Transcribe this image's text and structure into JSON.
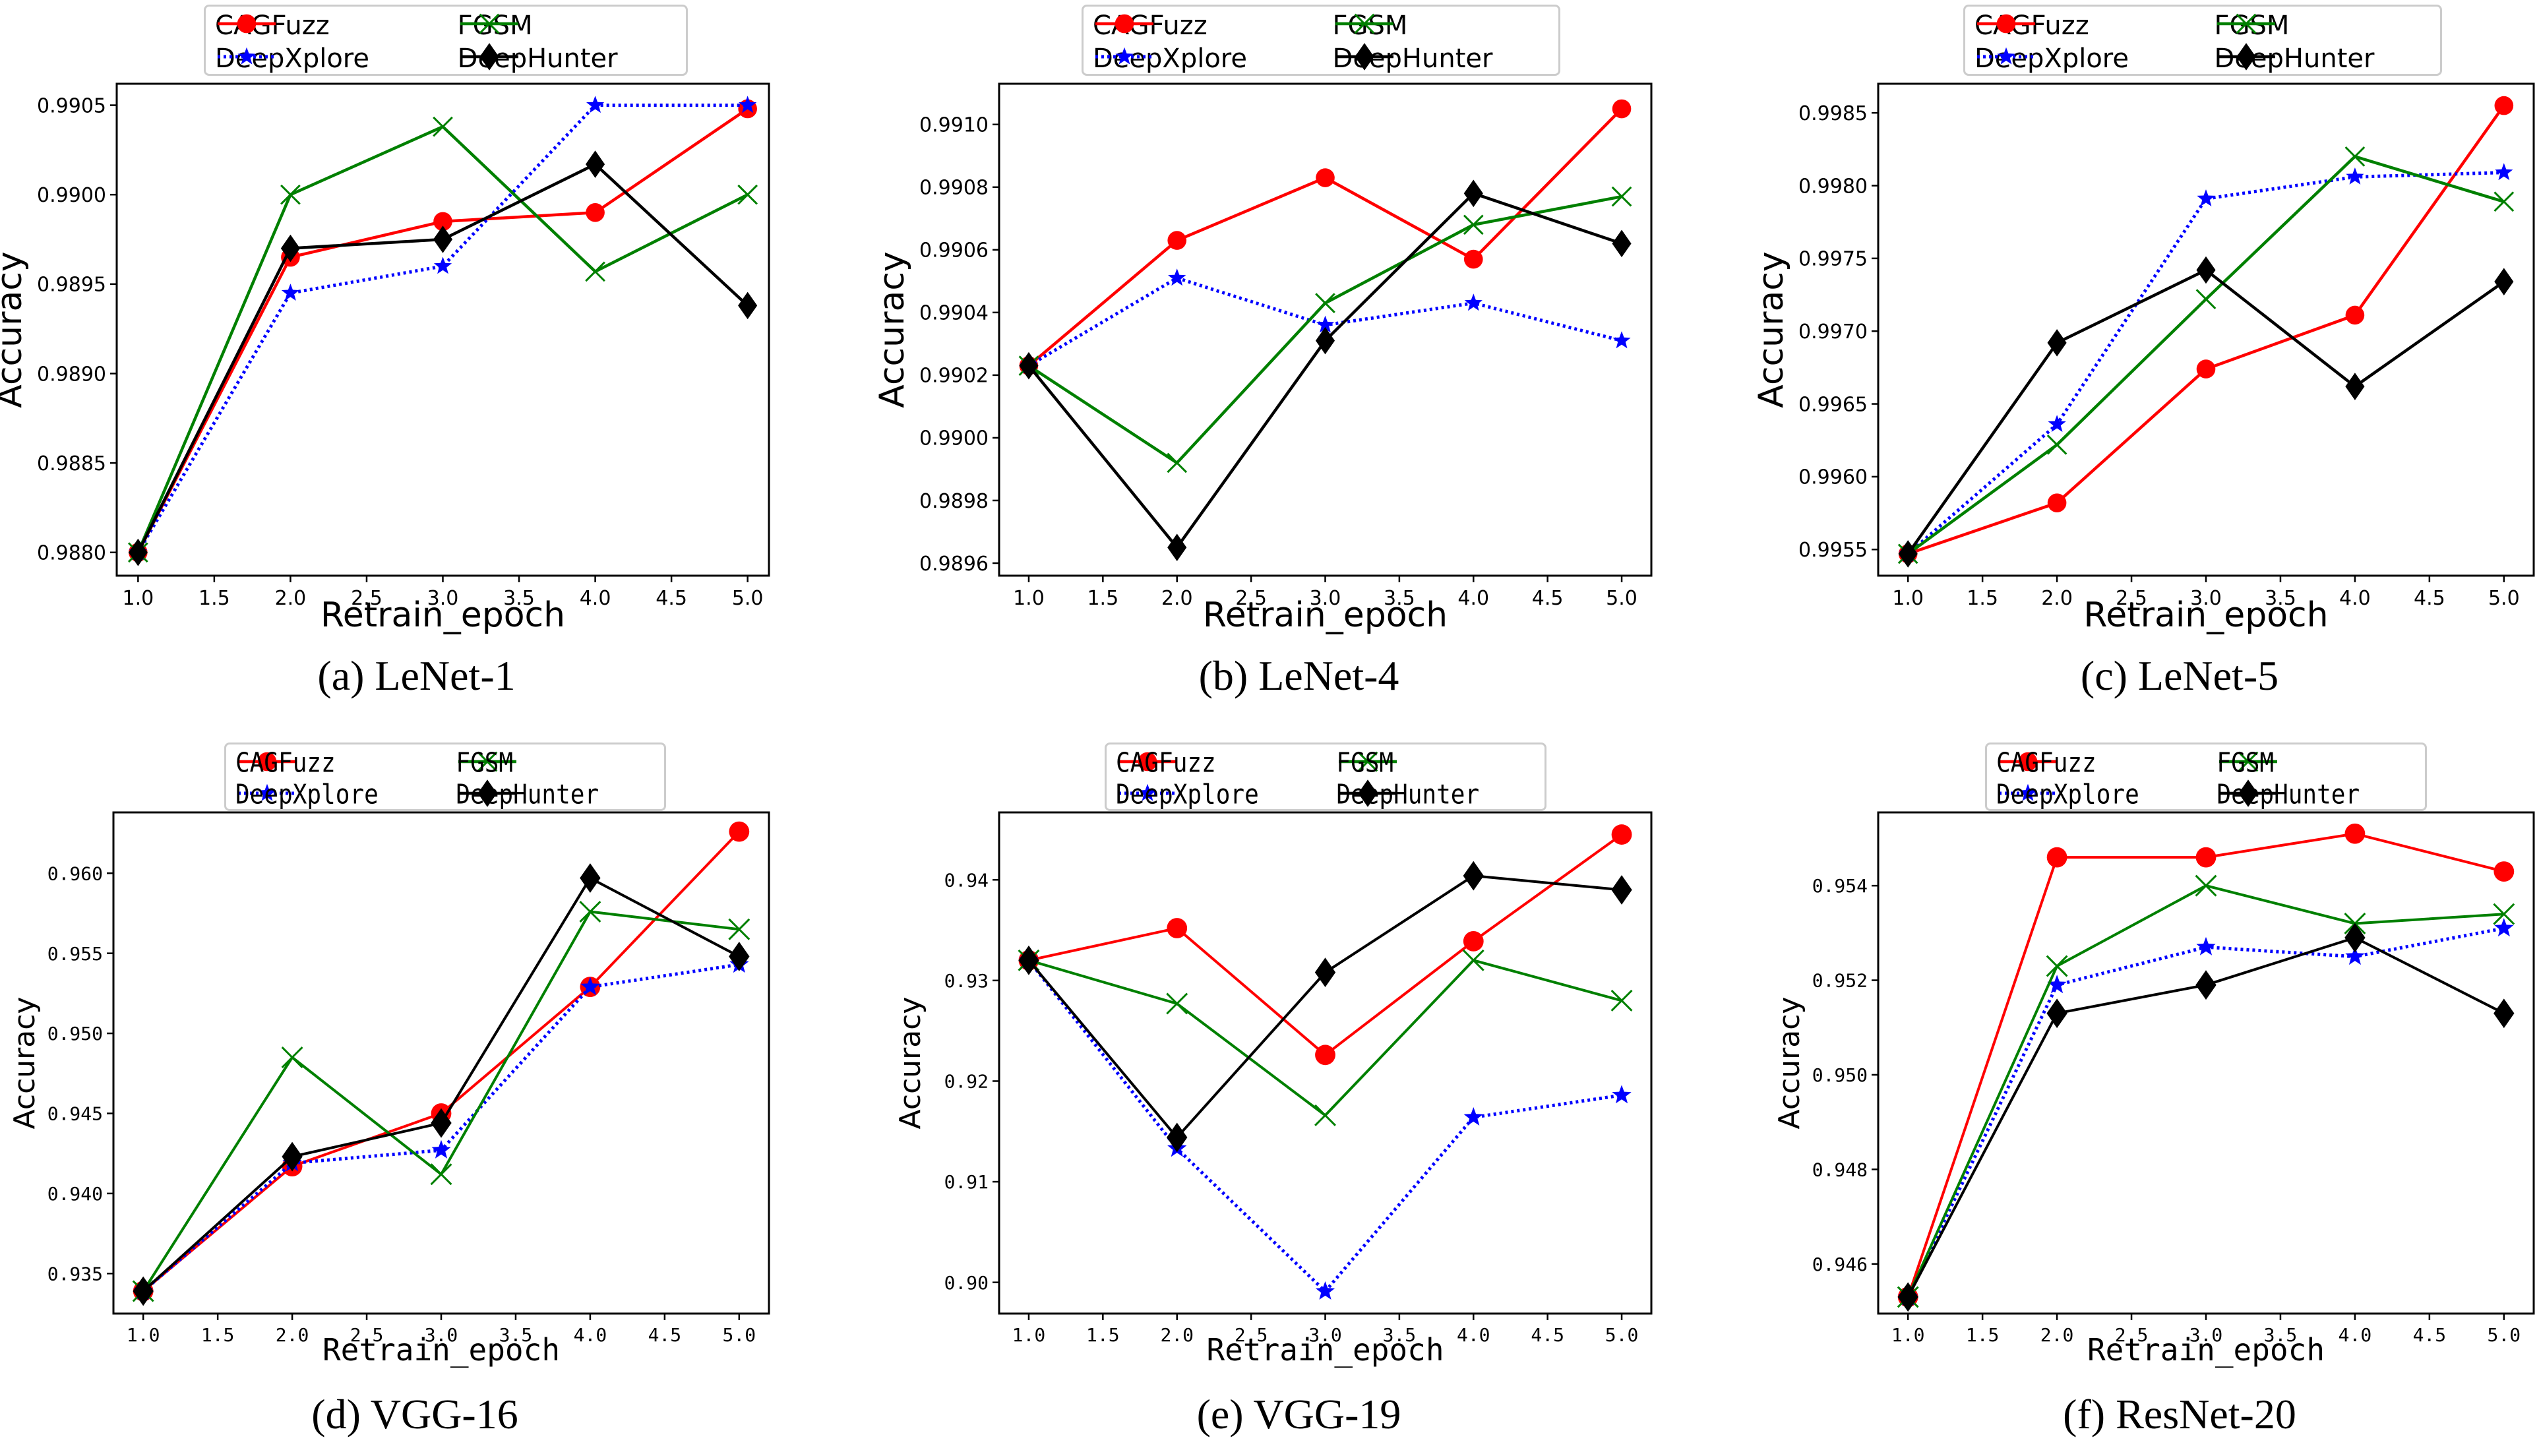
{
  "figure": {
    "series_styles": {
      "CAGFuzz": {
        "color": "#ff0000",
        "marker": "circle",
        "dash": "solid"
      },
      "DeepXplore": {
        "color": "#0000ff",
        "marker": "star",
        "dash": "dotted"
      },
      "FGSM": {
        "color": "#008000",
        "marker": "x",
        "dash": "solid"
      },
      "DeepHunter": {
        "color": "#000000",
        "marker": "diamond",
        "dash": "solid"
      }
    },
    "legend_order": [
      "CAGFuzz",
      "FGSM",
      "DeepXplore",
      "DeepHunter"
    ]
  },
  "chart_data": [
    {
      "type": "line",
      "caption": "(a)  LeNet-1",
      "xlabel": "Retrain_epoch",
      "ylabel": "Accuracy",
      "x": [
        1.0,
        2.0,
        3.0,
        4.0,
        5.0
      ],
      "xlim": [
        0.86,
        5.14
      ],
      "xticks": [
        1.0,
        1.5,
        2.0,
        2.5,
        3.0,
        3.5,
        4.0,
        4.5,
        5.0
      ],
      "xtick_labels": [
        "1.0",
        "1.5",
        "2.0",
        "2.5",
        "3.0",
        "3.5",
        "4.0",
        "4.5",
        "5.0"
      ],
      "ylim": [
        0.98787,
        0.99062
      ],
      "yticks": [
        0.988,
        0.9885,
        0.989,
        0.9895,
        0.99,
        0.9905
      ],
      "ytick_labels": [
        "0.9880",
        "0.9885",
        "0.9890",
        "0.9895",
        "0.9900",
        "0.9905"
      ],
      "grid": false,
      "legend_position": "top-center",
      "series": [
        {
          "name": "CAGFuzz",
          "values": [
            0.988,
            0.98965,
            0.98985,
            0.9899,
            0.99048
          ]
        },
        {
          "name": "DeepXplore",
          "values": [
            0.988,
            0.98945,
            0.9896,
            0.9905,
            0.9905
          ]
        },
        {
          "name": "FGSM",
          "values": [
            0.988,
            0.99,
            0.99038,
            0.98957,
            0.99
          ]
        },
        {
          "name": "DeepHunter",
          "values": [
            0.988,
            0.9897,
            0.98975,
            0.99017,
            0.98938
          ]
        }
      ]
    },
    {
      "type": "line",
      "caption": "(b)  LeNet-4",
      "xlabel": "Retrain_epoch",
      "ylabel": "Accuracy",
      "x": [
        1.0,
        2.0,
        3.0,
        4.0,
        5.0
      ],
      "xlim": [
        0.8,
        5.2
      ],
      "xticks": [
        1.0,
        1.5,
        2.0,
        2.5,
        3.0,
        3.5,
        4.0,
        4.5,
        5.0
      ],
      "xtick_labels": [
        "1.0",
        "1.5",
        "2.0",
        "2.5",
        "3.0",
        "3.5",
        "4.0",
        "4.5",
        "5.0"
      ],
      "ylim": [
        0.98956,
        0.99113
      ],
      "yticks": [
        0.9896,
        0.9898,
        0.99,
        0.9902,
        0.9904,
        0.9906,
        0.9908,
        0.991
      ],
      "ytick_labels": [
        "0.9896",
        "0.9898",
        "0.9900",
        "0.9902",
        "0.9904",
        "0.9906",
        "0.9908",
        "0.9910"
      ],
      "grid": false,
      "legend_position": "top-center",
      "series": [
        {
          "name": "CAGFuzz",
          "values": [
            0.99023,
            0.99063,
            0.99083,
            0.99057,
            0.99105
          ]
        },
        {
          "name": "DeepXplore",
          "values": [
            0.99023,
            0.99051,
            0.99036,
            0.99043,
            0.99031
          ]
        },
        {
          "name": "FGSM",
          "values": [
            0.99023,
            0.98992,
            0.99043,
            0.99068,
            0.99077
          ]
        },
        {
          "name": "DeepHunter",
          "values": [
            0.99023,
            0.98965,
            0.99031,
            0.99078,
            0.99062
          ]
        }
      ]
    },
    {
      "type": "line",
      "caption": "(c)  LeNet-5",
      "xlabel": "Retrain_epoch",
      "ylabel": "Accuracy",
      "x": [
        1.0,
        2.0,
        3.0,
        4.0,
        5.0
      ],
      "xlim": [
        0.8,
        5.2
      ],
      "xticks": [
        1.0,
        1.5,
        2.0,
        2.5,
        3.0,
        3.5,
        4.0,
        4.5,
        5.0
      ],
      "xtick_labels": [
        "1.0",
        "1.5",
        "2.0",
        "2.5",
        "3.0",
        "3.5",
        "4.0",
        "4.5",
        "5.0"
      ],
      "ylim": [
        0.99532,
        0.9987
      ],
      "yticks": [
        0.9955,
        0.996,
        0.9965,
        0.997,
        0.9975,
        0.998,
        0.9985
      ],
      "ytick_labels": [
        "0.9955",
        "0.9960",
        "0.9965",
        "0.9970",
        "0.9975",
        "0.9980",
        "0.9985"
      ],
      "grid": false,
      "legend_position": "top-center",
      "series": [
        {
          "name": "CAGFuzz",
          "values": [
            0.99547,
            0.99582,
            0.99674,
            0.99711,
            0.99855
          ]
        },
        {
          "name": "DeepXplore",
          "values": [
            0.99547,
            0.99636,
            0.99791,
            0.99806,
            0.99809
          ]
        },
        {
          "name": "FGSM",
          "values": [
            0.99547,
            0.99622,
            0.99722,
            0.9982,
            0.99789
          ]
        },
        {
          "name": "DeepHunter",
          "values": [
            0.99547,
            0.99692,
            0.99742,
            0.99662,
            0.99734
          ]
        }
      ]
    },
    {
      "type": "line",
      "caption": "(d)  VGG-16",
      "xlabel": "Retrain_epoch",
      "ylabel": "Accuracy",
      "x": [
        1.0,
        2.0,
        3.0,
        4.0,
        5.0
      ],
      "xlim": [
        0.8,
        5.2
      ],
      "xticks": [
        1.0,
        1.5,
        2.0,
        2.5,
        3.0,
        3.5,
        4.0,
        4.5,
        5.0
      ],
      "xtick_labels": [
        "1.0",
        "1.5",
        "2.0",
        "2.5",
        "3.0",
        "3.5",
        "4.0",
        "4.5",
        "5.0"
      ],
      "ylim": [
        0.9325,
        0.9638
      ],
      "yticks": [
        0.935,
        0.94,
        0.945,
        0.95,
        0.955,
        0.96
      ],
      "ytick_labels": [
        "0.935",
        "0.940",
        "0.945",
        "0.950",
        "0.955",
        "0.960"
      ],
      "grid": false,
      "legend_position": "top-center",
      "series": [
        {
          "name": "CAGFuzz",
          "values": [
            0.9339,
            0.9417,
            0.945,
            0.9529,
            0.9626
          ]
        },
        {
          "name": "DeepXplore",
          "values": [
            0.9339,
            0.9419,
            0.9427,
            0.9529,
            0.9543
          ]
        },
        {
          "name": "FGSM",
          "values": [
            0.9339,
            0.9485,
            0.9412,
            0.9576,
            0.9565
          ]
        },
        {
          "name": "DeepHunter",
          "values": [
            0.9339,
            0.9423,
            0.9444,
            0.9597,
            0.9548
          ]
        }
      ]
    },
    {
      "type": "line",
      "caption": "(e)  VGG-19",
      "xlabel": "Retrain_epoch",
      "ylabel": "Accuracy",
      "x": [
        1.0,
        2.0,
        3.0,
        4.0,
        5.0
      ],
      "xlim": [
        0.8,
        5.2
      ],
      "xticks": [
        1.0,
        1.5,
        2.0,
        2.5,
        3.0,
        3.5,
        4.0,
        4.5,
        5.0
      ],
      "xtick_labels": [
        "1.0",
        "1.5",
        "2.0",
        "2.5",
        "3.0",
        "3.5",
        "4.0",
        "4.5",
        "5.0"
      ],
      "ylim": [
        0.8969,
        0.9467
      ],
      "yticks": [
        0.9,
        0.91,
        0.92,
        0.93,
        0.94
      ],
      "ytick_labels": [
        "0.90",
        "0.91",
        "0.92",
        "0.93",
        "0.94"
      ],
      "grid": false,
      "legend_position": "top-center",
      "series": [
        {
          "name": "CAGFuzz",
          "values": [
            0.932,
            0.9352,
            0.9226,
            0.9339,
            0.9445
          ]
        },
        {
          "name": "DeepXplore",
          "values": [
            0.932,
            0.9133,
            0.8991,
            0.9164,
            0.9186
          ]
        },
        {
          "name": "FGSM",
          "values": [
            0.932,
            0.9277,
            0.9166,
            0.932,
            0.928
          ]
        },
        {
          "name": "DeepHunter",
          "values": [
            0.932,
            0.9144,
            0.9308,
            0.9404,
            0.939
          ]
        }
      ]
    },
    {
      "type": "line",
      "caption": "(f)  ResNet-20",
      "xlabel": "Retrain_epoch",
      "ylabel": "Accuracy",
      "x": [
        1.0,
        2.0,
        3.0,
        4.0,
        5.0
      ],
      "xlim": [
        0.8,
        5.2
      ],
      "xticks": [
        1.0,
        1.5,
        2.0,
        2.5,
        3.0,
        3.5,
        4.0,
        4.5,
        5.0
      ],
      "xtick_labels": [
        "1.0",
        "1.5",
        "2.0",
        "2.5",
        "3.0",
        "3.5",
        "4.0",
        "4.5",
        "5.0"
      ],
      "ylim": [
        0.94495,
        0.95555
      ],
      "yticks": [
        0.946,
        0.948,
        0.95,
        0.952,
        0.954
      ],
      "ytick_labels": [
        "0.946",
        "0.948",
        "0.950",
        "0.952",
        "0.954"
      ],
      "grid": false,
      "legend_position": "top-center",
      "series": [
        {
          "name": "CAGFuzz",
          "values": [
            0.9453,
            0.9546,
            0.9546,
            0.9551,
            0.9543
          ]
        },
        {
          "name": "DeepXplore",
          "values": [
            0.9453,
            0.9519,
            0.9527,
            0.9525,
            0.9531
          ]
        },
        {
          "name": "FGSM",
          "values": [
            0.9453,
            0.9523,
            0.954,
            0.9532,
            0.9534
          ]
        },
        {
          "name": "DeepHunter",
          "values": [
            0.9453,
            0.9513,
            0.9519,
            0.9529,
            0.9513
          ]
        }
      ]
    }
  ]
}
